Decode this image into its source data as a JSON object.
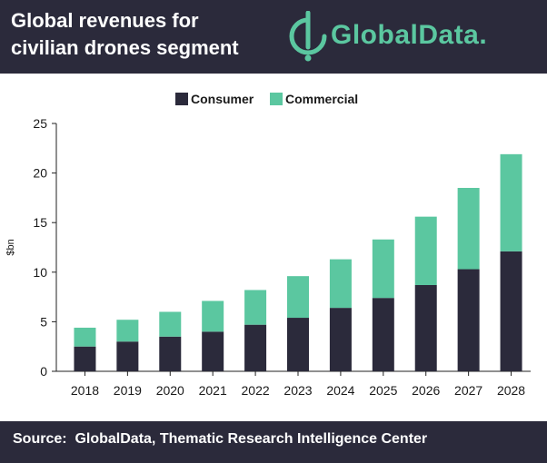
{
  "header": {
    "title_line1": "Global revenues for",
    "title_line2": "civilian drones segment",
    "logo_text": "GlobalData."
  },
  "footer": {
    "source": "Source:  GlobalData, Thematic Research Intelligence Center"
  },
  "colors": {
    "header_bg": "#2b2a3b",
    "consumer": "#2b2a3b",
    "commercial": "#5bc7a0"
  },
  "chart_data": {
    "type": "bar",
    "stacked": true,
    "categories": [
      "2018",
      "2019",
      "2020",
      "2021",
      "2022",
      "2023",
      "2024",
      "2025",
      "2026",
      "2027",
      "2028"
    ],
    "series": [
      {
        "name": "Consumer",
        "color": "#2b2a3b",
        "values": [
          2.5,
          3.0,
          3.5,
          4.0,
          4.7,
          5.4,
          6.4,
          7.4,
          8.7,
          10.3,
          12.1
        ]
      },
      {
        "name": "Commercial",
        "color": "#5bc7a0",
        "values": [
          1.9,
          2.2,
          2.5,
          3.1,
          3.5,
          4.2,
          4.9,
          5.9,
          6.9,
          8.2,
          9.8
        ]
      }
    ],
    "ylabel": "$bn",
    "ylim": [
      0,
      25
    ],
    "yticks": [
      "0",
      "5",
      "10",
      "15",
      "20",
      "25"
    ],
    "legend_position": "top-center",
    "grid": false
  }
}
